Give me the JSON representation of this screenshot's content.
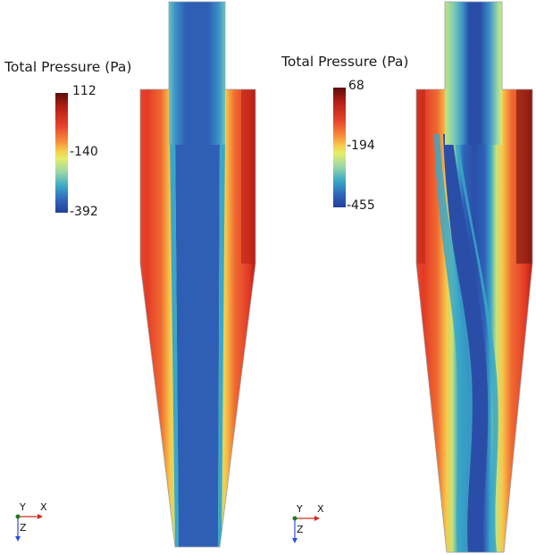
{
  "left_panel": {
    "legend_title": "Total Pressure (Pa)",
    "ticks": [
      "112",
      "-140",
      "-392"
    ]
  },
  "right_panel": {
    "legend_title": "Total Pressure (Pa)",
    "ticks": [
      "68",
      "-194",
      "-455"
    ]
  },
  "axis_triad": {
    "y": "Y",
    "x": "X",
    "z": "Z"
  },
  "colormap": [
    "#5a0f0a",
    "#b51e14",
    "#e8452b",
    "#f58a3a",
    "#f7c94a",
    "#e3ee6a",
    "#9ad7a6",
    "#3aa7c8",
    "#2f62b8",
    "#24409a"
  ]
}
